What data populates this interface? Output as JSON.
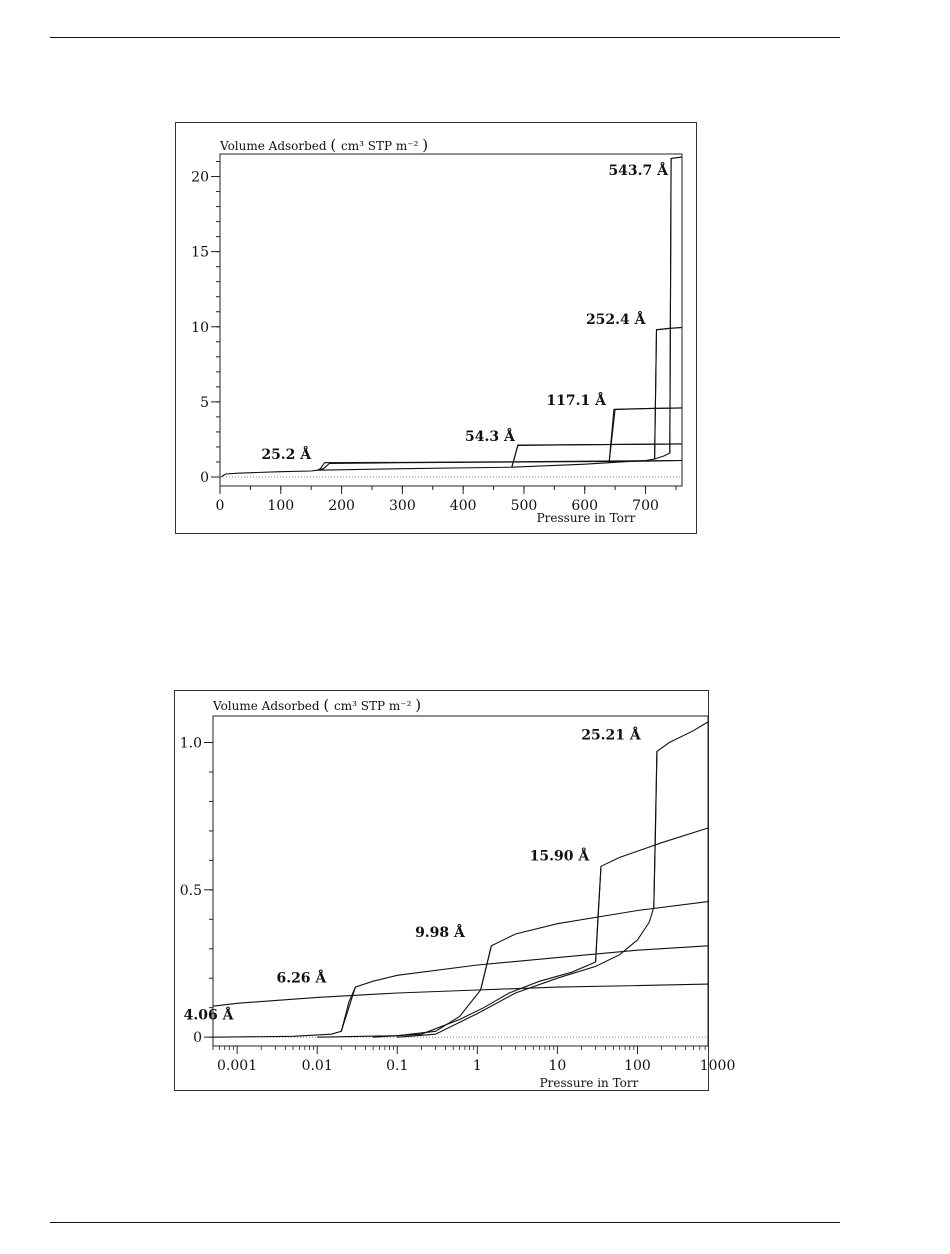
{
  "chart_data": [
    {
      "type": "line",
      "title": "",
      "ylabel": "Volume Adsorbed (cm³ STP m⁻²)",
      "ylabel_parts": {
        "main": "Volume Adsorbed",
        "paren_open": "(",
        "unit": "cm³ STP m⁻²",
        "paren_close": ")"
      },
      "xlabel": "Pressure in Torr",
      "xscale": "linear",
      "xlim": [
        0,
        760
      ],
      "ylim": [
        -0.6,
        21.5
      ],
      "xticks": [
        0,
        100,
        200,
        300,
        400,
        500,
        600,
        700
      ],
      "xtick_labels": [
        "0",
        "100",
        "200",
        "300",
        "400",
        "500",
        "600",
        "700"
      ],
      "yticks": [
        0,
        5,
        10,
        15,
        20
      ],
      "ytick_labels": [
        "0",
        "5",
        "10",
        "15",
        "20"
      ],
      "dotted_zero_line": true,
      "series": [
        {
          "name": "25.2 Å",
          "label_at": [
            150,
            1.2
          ],
          "adsorption": [
            [
              2,
              0
            ],
            [
              5,
              0.1
            ],
            [
              10,
              0.2
            ],
            [
              30,
              0.25
            ],
            [
              60,
              0.3
            ],
            [
              100,
              0.35
            ],
            [
              150,
              0.4
            ],
            [
              160,
              0.45
            ],
            [
              170,
              0.55
            ],
            [
              180,
              0.9
            ],
            [
              300,
              0.95
            ],
            [
              500,
              1.0
            ],
            [
              700,
              1.05
            ],
            [
              760,
              1.1
            ]
          ],
          "desorption": [
            [
              760,
              1.1
            ],
            [
              500,
              1.02
            ],
            [
              300,
              0.97
            ],
            [
              172,
              0.95
            ],
            [
              165,
              0.55
            ],
            [
              160,
              0.45
            ]
          ]
        },
        {
          "name": "54.3 Å",
          "label_at": [
            485,
            2.4
          ],
          "adsorption": [
            [
              160,
              0.45
            ],
            [
              300,
              0.55
            ],
            [
              480,
              0.65
            ],
            [
              490,
              2.1
            ],
            [
              600,
              2.15
            ],
            [
              760,
              2.2
            ]
          ],
          "desorption": [
            [
              760,
              2.2
            ],
            [
              600,
              2.15
            ],
            [
              490,
              2.12
            ],
            [
              480,
              0.65
            ]
          ]
        },
        {
          "name": "117.1 Å",
          "label_at": [
            635,
            4.8
          ],
          "adsorption": [
            [
              480,
              0.65
            ],
            [
              600,
              0.85
            ],
            [
              640,
              0.95
            ],
            [
              648,
              4.5
            ],
            [
              700,
              4.55
            ],
            [
              760,
              4.6
            ]
          ],
          "desorption": [
            [
              760,
              4.6
            ],
            [
              700,
              4.55
            ],
            [
              650,
              4.5
            ],
            [
              640,
              0.95
            ]
          ]
        },
        {
          "name": "252.4 Å",
          "label_at": [
            700,
            10.2
          ],
          "adsorption": [
            [
              640,
              0.95
            ],
            [
              700,
              1.1
            ],
            [
              715,
              1.2
            ],
            [
              718,
              9.8
            ],
            [
              740,
              9.9
            ],
            [
              760,
              9.95
            ]
          ],
          "desorption": [
            [
              760,
              9.95
            ],
            [
              740,
              9.9
            ],
            [
              718,
              9.8
            ],
            [
              715,
              1.2
            ]
          ]
        },
        {
          "name": "543.7 Å",
          "label_at": [
            737,
            20.1
          ],
          "adsorption": [
            [
              715,
              1.2
            ],
            [
              730,
              1.4
            ],
            [
              740,
              1.6
            ],
            [
              742,
              21.2
            ],
            [
              760,
              21.3
            ]
          ],
          "desorption": [
            [
              760,
              21.3
            ],
            [
              742,
              21.2
            ],
            [
              740,
              1.6
            ]
          ]
        }
      ]
    },
    {
      "type": "line",
      "title": "",
      "ylabel": "Volume Adsorbed (cm³ STP m⁻²)",
      "ylabel_parts": {
        "main": "Volume Adsorbed",
        "paren_open": "(",
        "unit": "cm³ STP m⁻²)",
        "paren_close": ")"
      },
      "xlabel": "Pressure in Torr",
      "xscale": "log",
      "xlim": [
        0.0005,
        760
      ],
      "ylim": [
        -0.03,
        1.09
      ],
      "xticks": [
        0.001,
        0.01,
        0.1,
        1,
        10,
        100,
        1000
      ],
      "xtick_labels": [
        "0.001",
        "0.01",
        "0.1",
        "1",
        "10",
        "100",
        "1000"
      ],
      "yticks": [
        0,
        0.5,
        1.0
      ],
      "ytick_labels": [
        "0",
        "0.5",
        "1.0"
      ],
      "dotted_zero_line": true,
      "series": [
        {
          "name": "4.06 Å",
          "label_at": [
            0.0009,
            0.06
          ],
          "adsorption": [
            [
              0.0005,
              0.105
            ],
            [
              0.001,
              0.115
            ],
            [
              0.01,
              0.135
            ],
            [
              0.1,
              0.15
            ],
            [
              1,
              0.16
            ],
            [
              10,
              0.17
            ],
            [
              100,
              0.175
            ],
            [
              760,
              0.18
            ]
          ],
          "desorption": []
        },
        {
          "name": "6.26 Å",
          "label_at": [
            0.013,
            0.185
          ],
          "adsorption": [
            [
              0.0005,
              0
            ],
            [
              0.005,
              0.003
            ],
            [
              0.015,
              0.01
            ],
            [
              0.02,
              0.02
            ],
            [
              0.03,
              0.17
            ],
            [
              0.05,
              0.19
            ],
            [
              0.1,
              0.21
            ],
            [
              1,
              0.245
            ],
            [
              10,
              0.27
            ],
            [
              100,
              0.295
            ],
            [
              760,
              0.31
            ]
          ],
          "desorption": [
            [
              0.03,
              0.17
            ],
            [
              0.025,
              0.12
            ],
            [
              0.02,
              0.02
            ]
          ]
        },
        {
          "name": "9.98 Å",
          "label_at": [
            0.7,
            0.34
          ],
          "adsorption": [
            [
              0.01,
              0
            ],
            [
              0.1,
              0.005
            ],
            [
              0.3,
              0.02
            ],
            [
              0.6,
              0.07
            ],
            [
              1.1,
              0.16
            ],
            [
              1.5,
              0.31
            ],
            [
              3,
              0.35
            ],
            [
              10,
              0.385
            ],
            [
              100,
              0.43
            ],
            [
              760,
              0.46
            ]
          ],
          "desorption": [
            [
              1.5,
              0.31
            ],
            [
              1.3,
              0.24
            ],
            [
              1.1,
              0.16
            ]
          ]
        },
        {
          "name": "15.90 Å",
          "label_at": [
            25,
            0.6
          ],
          "adsorption": [
            [
              0.05,
              0
            ],
            [
              0.2,
              0.01
            ],
            [
              0.6,
              0.06
            ],
            [
              1.2,
              0.1
            ],
            [
              2.5,
              0.15
            ],
            [
              6,
              0.19
            ],
            [
              15,
              0.22
            ],
            [
              30,
              0.255
            ],
            [
              35,
              0.58
            ],
            [
              60,
              0.61
            ],
            [
              200,
              0.66
            ],
            [
              760,
              0.71
            ]
          ],
          "desorption": [
            [
              35,
              0.58
            ],
            [
              32,
              0.4
            ],
            [
              30,
              0.255
            ]
          ]
        },
        {
          "name": "25.21 Å",
          "label_at": [
            110,
            1.01
          ],
          "adsorption": [
            [
              0.1,
              0
            ],
            [
              0.3,
              0.01
            ],
            [
              1,
              0.08
            ],
            [
              3,
              0.15
            ],
            [
              10,
              0.2
            ],
            [
              30,
              0.24
            ],
            [
              60,
              0.28
            ],
            [
              100,
              0.33
            ],
            [
              140,
              0.39
            ],
            [
              160,
              0.44
            ],
            [
              175,
              0.97
            ],
            [
              250,
              1.0
            ],
            [
              500,
              1.04
            ],
            [
              760,
              1.07
            ]
          ],
          "desorption": [
            [
              175,
              0.97
            ],
            [
              168,
              0.7
            ],
            [
              160,
              0.44
            ]
          ]
        }
      ]
    }
  ]
}
